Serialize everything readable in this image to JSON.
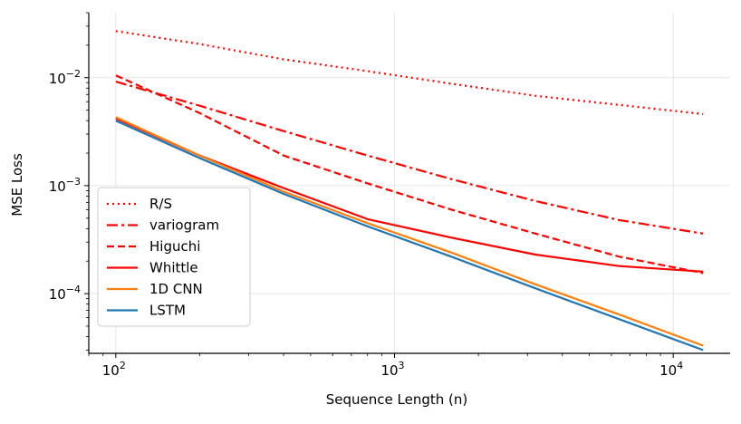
{
  "chart_data": {
    "type": "line",
    "xscale": "log",
    "yscale": "log",
    "title": "",
    "xlabel": "Sequence Length (n)",
    "ylabel": "MSE Loss",
    "xlim": [
      80,
      16000
    ],
    "ylim": [
      2.8e-05,
      0.04
    ],
    "grid": true,
    "legend_position": "lower-left",
    "x_ticks": [
      {
        "value": 100,
        "base": "10",
        "exp": "2"
      },
      {
        "value": 1000,
        "base": "10",
        "exp": "3"
      },
      {
        "value": 10000,
        "base": "10",
        "exp": "4"
      }
    ],
    "y_ticks": [
      {
        "value": 0.0001,
        "base": "10",
        "exp": "−4"
      },
      {
        "value": 0.001,
        "base": "10",
        "exp": "−3"
      },
      {
        "value": 0.01,
        "base": "10",
        "exp": "−2"
      }
    ],
    "series": [
      {
        "name": "R/S",
        "color": "#ff0000",
        "dash": "dotted",
        "x": [
          100,
          200,
          400,
          800,
          1600,
          3200,
          6400,
          12800
        ],
        "y": [
          0.027,
          0.0205,
          0.0148,
          0.0115,
          0.0088,
          0.0068,
          0.0056,
          0.0046
        ]
      },
      {
        "name": "variogram",
        "color": "#ff0000",
        "dash": "dashdot",
        "x": [
          100,
          200,
          400,
          800,
          1600,
          3200,
          6400,
          12800
        ],
        "y": [
          0.0092,
          0.0055,
          0.0032,
          0.0019,
          0.00115,
          0.00072,
          0.00048,
          0.00036
        ]
      },
      {
        "name": "Higuchi",
        "color": "#ff0000",
        "dash": "dashed",
        "x": [
          100,
          200,
          400,
          800,
          1600,
          3200,
          6400,
          12800
        ],
        "y": [
          0.0105,
          0.0047,
          0.0019,
          0.00105,
          0.0006,
          0.00036,
          0.00022,
          0.000155
        ]
      },
      {
        "name": "Whittle",
        "color": "#ff0000",
        "dash": "solid",
        "x": [
          100,
          200,
          400,
          800,
          1600,
          3200,
          6400,
          12800
        ],
        "y": [
          0.0042,
          0.0019,
          0.00095,
          0.00049,
          0.00033,
          0.00023,
          0.00018,
          0.00016
        ]
      },
      {
        "name": "1D CNN",
        "color": "#ff7f0e",
        "dash": "solid",
        "x": [
          100,
          200,
          400,
          800,
          1600,
          3200,
          6400,
          12800
        ],
        "y": [
          0.0043,
          0.0019,
          0.00088,
          0.00045,
          0.00024,
          0.000122,
          6.4e-05,
          3.3e-05
        ]
      },
      {
        "name": "LSTM",
        "color": "#1f77b4",
        "dash": "solid",
        "x": [
          100,
          200,
          400,
          800,
          1600,
          3200,
          6400,
          12800
        ],
        "y": [
          0.004,
          0.0018,
          0.00084,
          0.00042,
          0.00022,
          0.000112,
          5.8e-05,
          3e-05
        ]
      }
    ]
  }
}
